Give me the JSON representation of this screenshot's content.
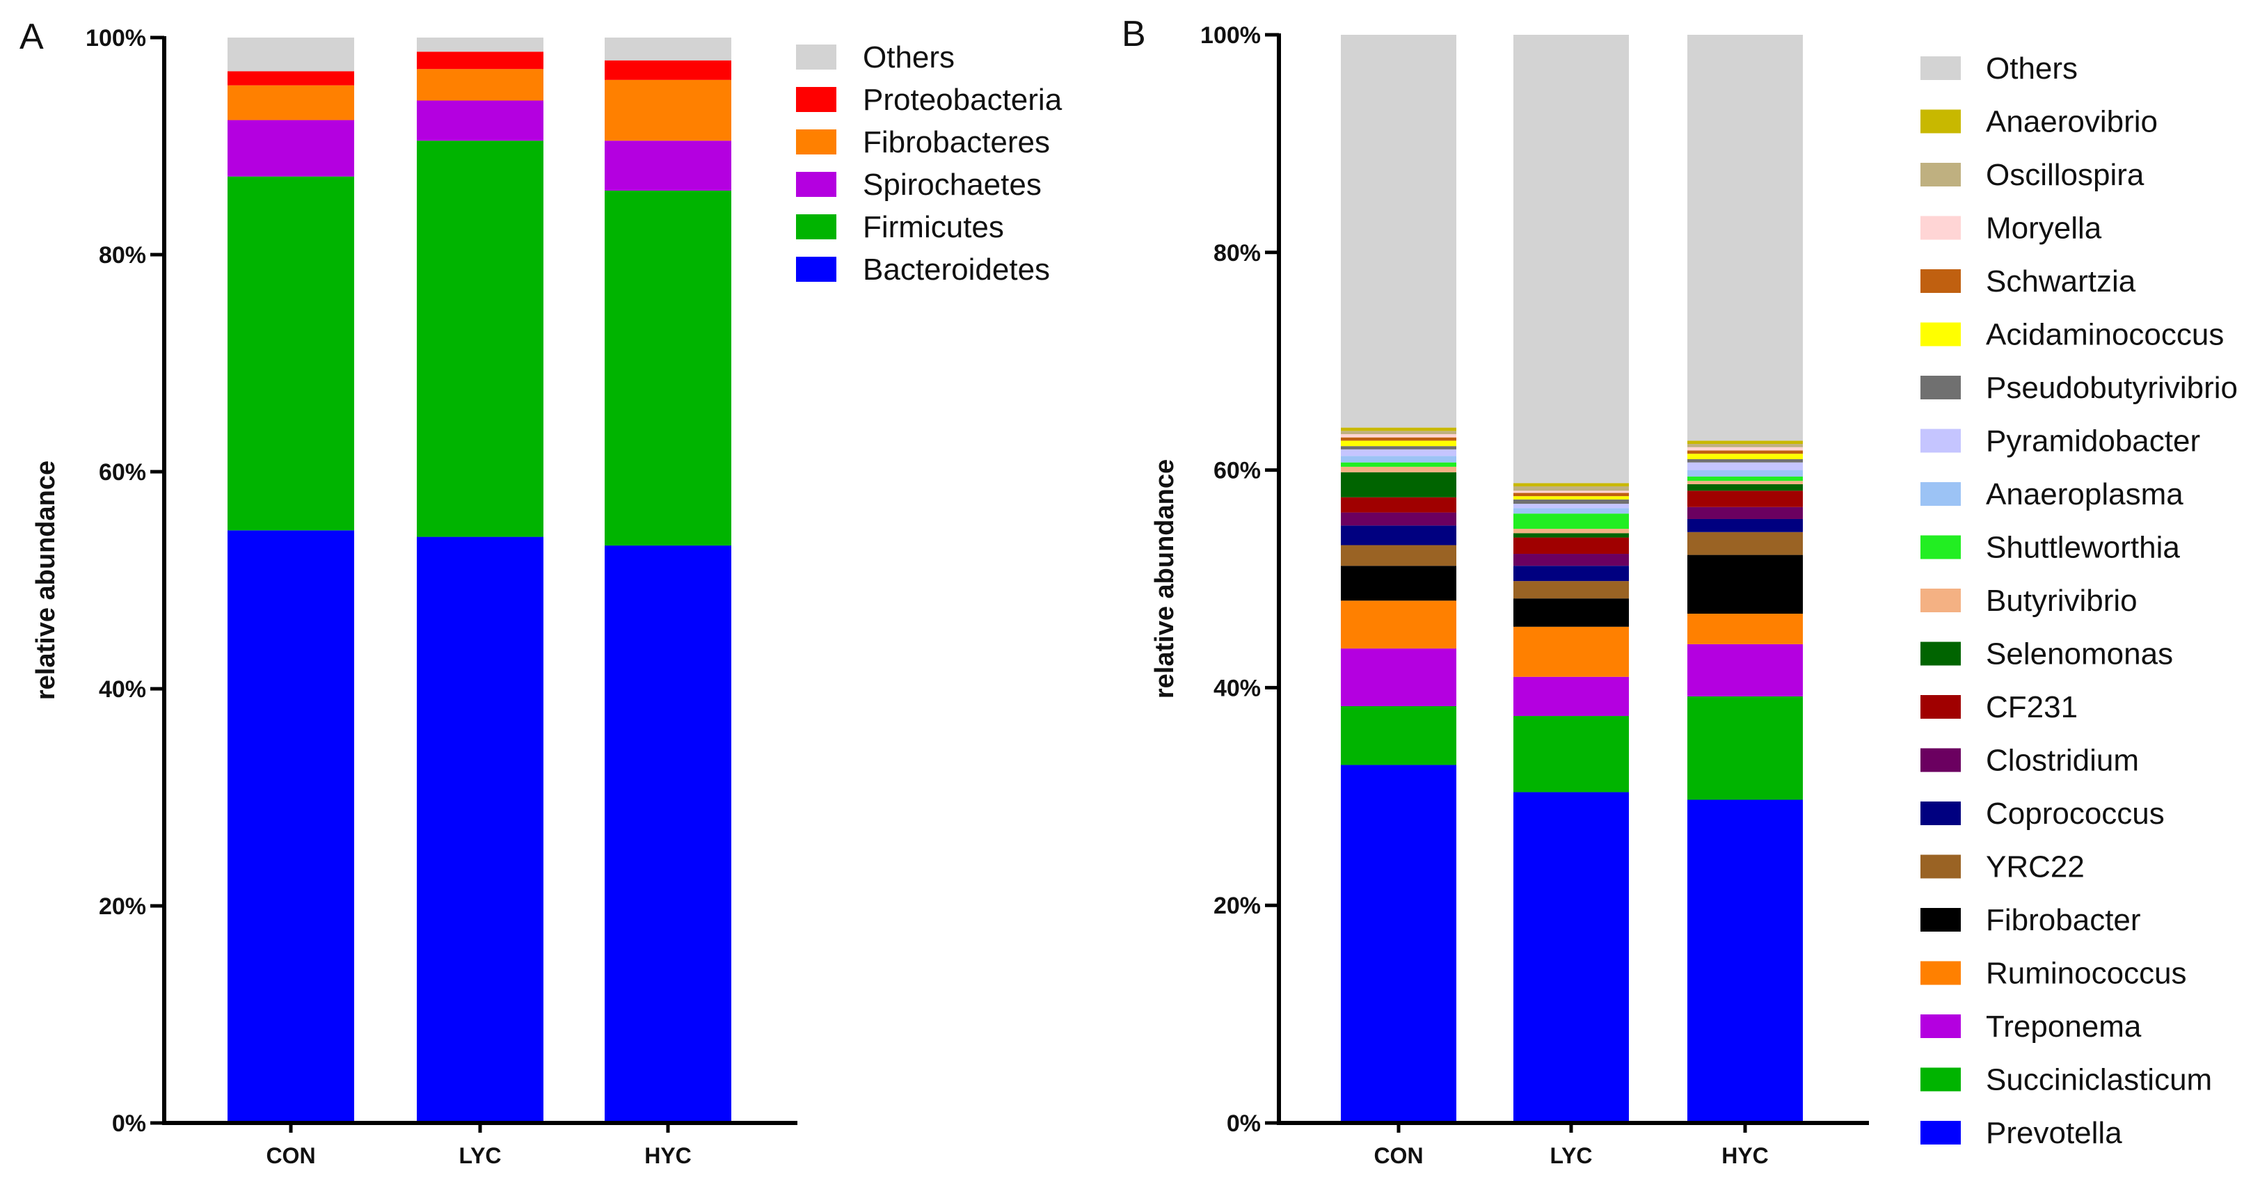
{
  "chart_data": [
    {
      "type": "bar",
      "stacked": true,
      "panel_label": "A",
      "ylabel": "relative abundance",
      "ylim": [
        0,
        100
      ],
      "y_ticks": [
        "0%",
        "20%",
        "40%",
        "60%",
        "80%",
        "100%"
      ],
      "categories": [
        "CON",
        "LYC",
        "HYC"
      ],
      "series": [
        {
          "name": "Bacteroidetes",
          "color": "#0000FF",
          "values": [
            54.6,
            54.0,
            53.2
          ]
        },
        {
          "name": "Firmicutes",
          "color": "#00B400",
          "values": [
            32.6,
            36.5,
            32.7
          ]
        },
        {
          "name": "Spirochaetes",
          "color": "#B400E0",
          "values": [
            5.2,
            3.7,
            4.6
          ]
        },
        {
          "name": "Fibrobacteres",
          "color": "#FF8000",
          "values": [
            3.2,
            2.9,
            5.6
          ]
        },
        {
          "name": "Proteobacteria",
          "color": "#FF0000",
          "values": [
            1.3,
            1.6,
            1.8
          ]
        },
        {
          "name": "Others",
          "color": "#D3D3D3",
          "values": [
            3.1,
            1.3,
            2.1
          ]
        }
      ]
    },
    {
      "type": "bar",
      "stacked": true,
      "panel_label": "B",
      "ylabel": "relative abundance",
      "ylim": [
        0,
        100
      ],
      "y_ticks": [
        "0%",
        "20%",
        "40%",
        "60%",
        "80%",
        "100%"
      ],
      "categories": [
        "CON",
        "LYC",
        "HYC"
      ],
      "series": [
        {
          "name": "Prevotella",
          "color": "#0000FF",
          "values": [
            32.9,
            30.4,
            29.7
          ]
        },
        {
          "name": "Succiniclasticum",
          "color": "#00B400",
          "values": [
            5.4,
            7.0,
            9.5
          ]
        },
        {
          "name": "Treponema",
          "color": "#B400E0",
          "values": [
            5.3,
            3.6,
            4.8
          ]
        },
        {
          "name": "Ruminococcus",
          "color": "#FF8000",
          "values": [
            4.4,
            4.6,
            2.8
          ]
        },
        {
          "name": "Fibrobacter",
          "color": "#000000",
          "values": [
            3.2,
            2.6,
            5.4
          ]
        },
        {
          "name": "YRC22",
          "color": "#9A6324",
          "values": [
            1.9,
            1.6,
            2.1
          ]
        },
        {
          "name": "Coprococcus",
          "color": "#000080",
          "values": [
            1.8,
            1.4,
            1.2
          ]
        },
        {
          "name": "Clostridium",
          "color": "#6B0060",
          "values": [
            1.2,
            1.1,
            1.1
          ]
        },
        {
          "name": "CF231",
          "color": "#A00000",
          "values": [
            1.4,
            1.5,
            1.5
          ]
        },
        {
          "name": "Selenomonas",
          "color": "#006400",
          "values": [
            2.3,
            0.4,
            0.6
          ]
        },
        {
          "name": "Butyrivibrio",
          "color": "#F4B183",
          "values": [
            0.5,
            0.4,
            0.3
          ]
        },
        {
          "name": "Shuttleworthia",
          "color": "#22EE22",
          "values": [
            0.4,
            1.4,
            0.4
          ]
        },
        {
          "name": "Anaeroplasma",
          "color": "#9CC3F5",
          "values": [
            0.6,
            0.5,
            0.6
          ]
        },
        {
          "name": "Pyramidobacter",
          "color": "#C5C5FF",
          "values": [
            0.6,
            0.4,
            0.7
          ]
        },
        {
          "name": "Pseudobutyrivibrio",
          "color": "#707070",
          "values": [
            0.3,
            0.4,
            0.3
          ]
        },
        {
          "name": "Acidaminococcus",
          "color": "#FFFF00",
          "values": [
            0.5,
            0.3,
            0.5
          ]
        },
        {
          "name": "Schwartzia",
          "color": "#C06010",
          "values": [
            0.3,
            0.3,
            0.3
          ]
        },
        {
          "name": "Moryella",
          "color": "#FFD5D5",
          "values": [
            0.3,
            0.2,
            0.3
          ]
        },
        {
          "name": "Oscillospira",
          "color": "#BFB080",
          "values": [
            0.3,
            0.4,
            0.3
          ]
        },
        {
          "name": "Anaerovibrio",
          "color": "#C8B800",
          "values": [
            0.3,
            0.3,
            0.3
          ]
        },
        {
          "name": "Others",
          "color": "#D3D3D3",
          "values": [
            36.1,
            41.2,
            37.3
          ]
        }
      ]
    }
  ]
}
